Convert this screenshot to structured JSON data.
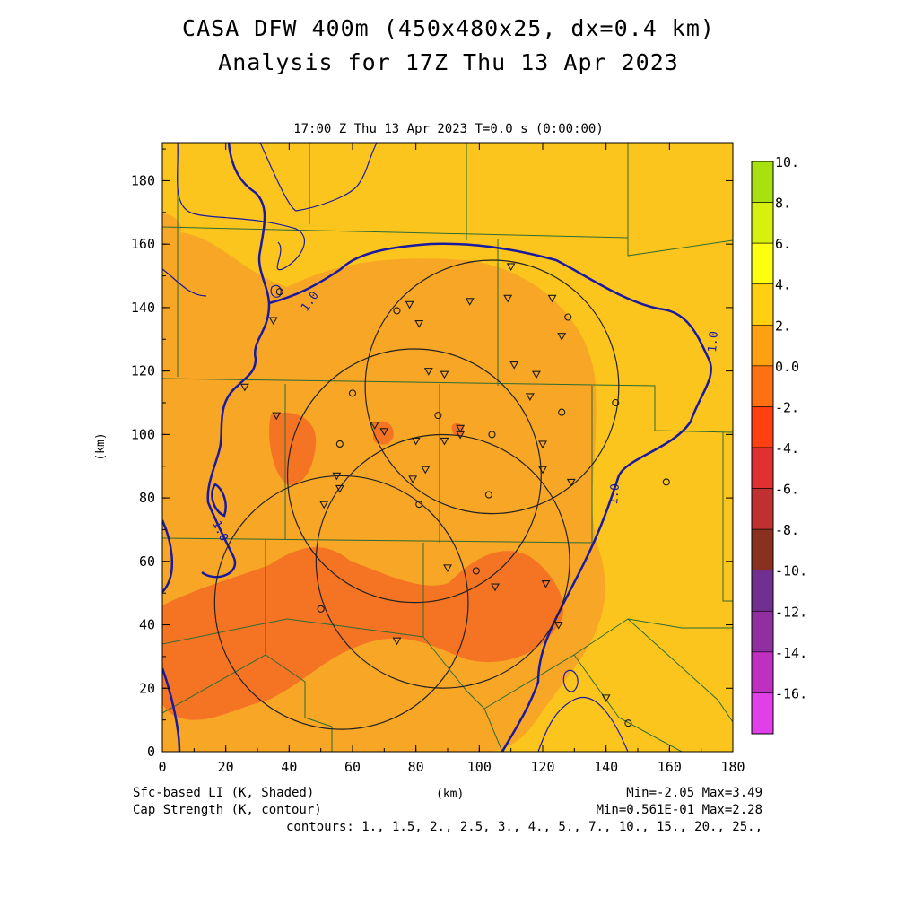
{
  "title": {
    "line1": "CASA DFW 400m (450x480x25, dx=0.4 km)",
    "line2": "Analysis for 17Z Thu 13 Apr 2023"
  },
  "subtitle": "17:00 Z Thu 13 Apr 2023    T=0.0 s (0:00:00)",
  "axes": {
    "x_label": "(km)",
    "y_label": "(km)",
    "x_range": [
      0,
      180
    ],
    "y_range": [
      0,
      192
    ],
    "x_ticks": [
      "0",
      "20",
      "40",
      "60",
      "80",
      "100",
      "120",
      "140",
      "160",
      "180"
    ],
    "y_ticks": [
      "0",
      "20",
      "40",
      "60",
      "80",
      "100",
      "120",
      "140",
      "160",
      "180"
    ]
  },
  "colorbar": {
    "labels": [
      "10.",
      "8.",
      "6.",
      "4.",
      "2.",
      "0.0",
      "-2.",
      "-4.",
      "-6.",
      "-8.",
      "-10.",
      "-12.",
      "-14.",
      "-16."
    ],
    "colors": [
      "#a8e010",
      "#d8f010",
      "#ffff10",
      "#ffd010",
      "#ffa010",
      "#ff7010",
      "#ff4010",
      "#e03030",
      "#c03030",
      "#8a3020",
      "#703090",
      "#9030a0",
      "#c030c0",
      "#e040e8"
    ]
  },
  "fill_colors": {
    "pos2_4": "#fbc51d",
    "pos0_2": "#f7a625",
    "neg2_0": "#f47424"
  },
  "contour_label": "1.0",
  "footer": {
    "left1": "Sfc-based LI (K, Shaded)",
    "left2": "Cap Strength (K, contour)",
    "center": "(km)",
    "right1": "Min=-2.05 Max=3.49",
    "right2": "Min=0.561E-01 Max=2.28",
    "contours": "contours: 1., 1.5, 2., 2.5, 3., 4., 5., 7., 10., 15., 20., 25.,"
  },
  "radars": [
    {
      "x": 56.5,
      "y": 47,
      "r_km": 40
    },
    {
      "x": 79.5,
      "y": 87,
      "r_km": 40
    },
    {
      "x": 88.5,
      "y": 60,
      "r_km": 40
    },
    {
      "x": 104,
      "y": 115,
      "r_km": 40
    }
  ],
  "stations_tri": [
    [
      35,
      136
    ],
    [
      26,
      115
    ],
    [
      36,
      106
    ],
    [
      78,
      141
    ],
    [
      81,
      135
    ],
    [
      97,
      142
    ],
    [
      110,
      153
    ],
    [
      109,
      143
    ],
    [
      123,
      143
    ],
    [
      126,
      131
    ],
    [
      84,
      120
    ],
    [
      89,
      119
    ],
    [
      111,
      122
    ],
    [
      118,
      119
    ],
    [
      116,
      112
    ],
    [
      67,
      103
    ],
    [
      70,
      101
    ],
    [
      94,
      102
    ],
    [
      94,
      100
    ],
    [
      89,
      98
    ],
    [
      80,
      98
    ],
    [
      120,
      97
    ],
    [
      55,
      87
    ],
    [
      56,
      83
    ],
    [
      79,
      86
    ],
    [
      83,
      89
    ],
    [
      51,
      78
    ],
    [
      129,
      85
    ],
    [
      90,
      58
    ],
    [
      105,
      52
    ],
    [
      121,
      53
    ],
    [
      125,
      40
    ],
    [
      74,
      35
    ],
    [
      140,
      17
    ],
    [
      120,
      89
    ]
  ],
  "stations_circ": [
    [
      37,
      145
    ],
    [
      74,
      139
    ],
    [
      128,
      137
    ],
    [
      60,
      113
    ],
    [
      87,
      106
    ],
    [
      143,
      110
    ],
    [
      56,
      97
    ],
    [
      104,
      100
    ],
    [
      103,
      81
    ],
    [
      81,
      78
    ],
    [
      159,
      85
    ],
    [
      99,
      57
    ],
    [
      50,
      45
    ],
    [
      147,
      9
    ],
    [
      126,
      107
    ]
  ]
}
